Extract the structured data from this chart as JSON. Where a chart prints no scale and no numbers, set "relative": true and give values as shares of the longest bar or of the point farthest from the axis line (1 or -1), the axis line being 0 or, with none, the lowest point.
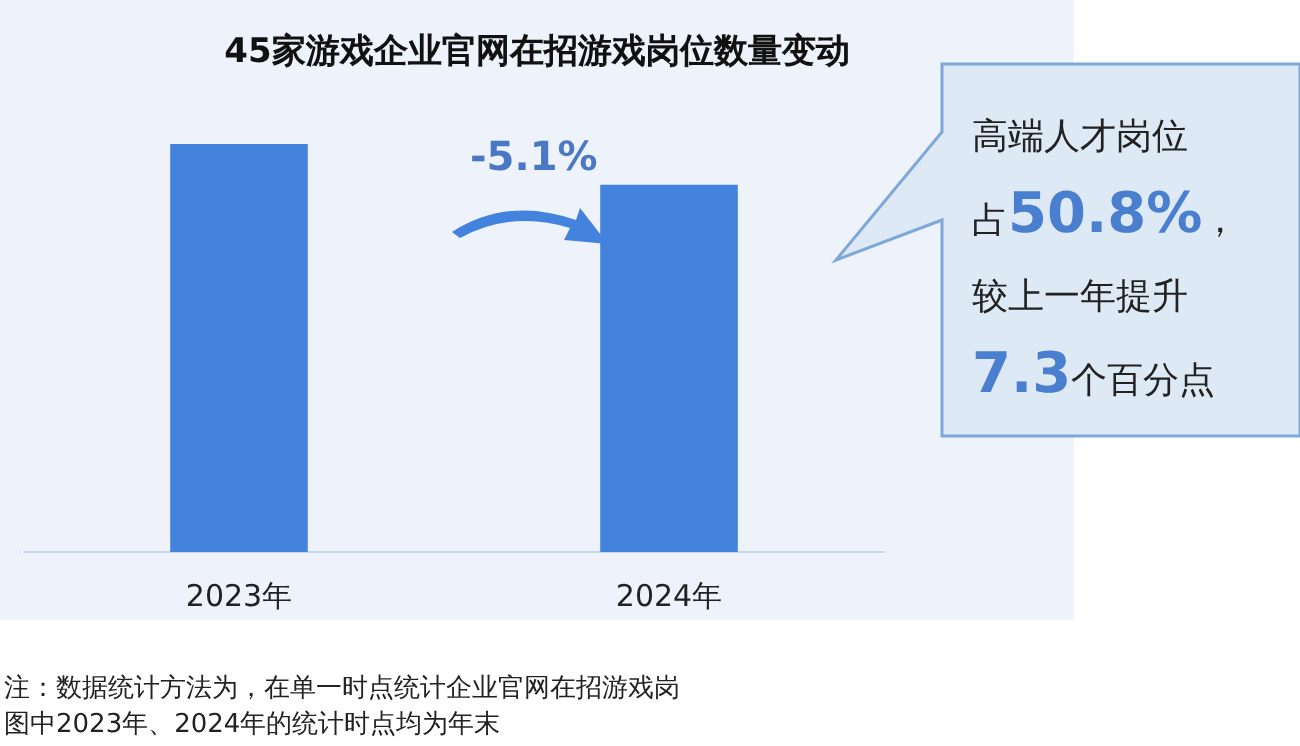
{
  "chart_data": {
    "type": "bar",
    "title": "45家游戏企业官网在招游戏岗位数量变动",
    "categories": [
      "2023年",
      "2024年"
    ],
    "values": [
      1,
      0.9
    ],
    "color": "#4383dd",
    "relative": true,
    "grid": false,
    "legend": false,
    "annotations": [
      "-5.1%",
      "高端人才岗位",
      "占50.8%，",
      "较上一年提升",
      "7.3个百分点",
      "注：数据统计方法为，在单一时点统计企业官网在招游戏岗",
      "图中2023年、2024年的统计时点均为年末"
    ]
  }
}
